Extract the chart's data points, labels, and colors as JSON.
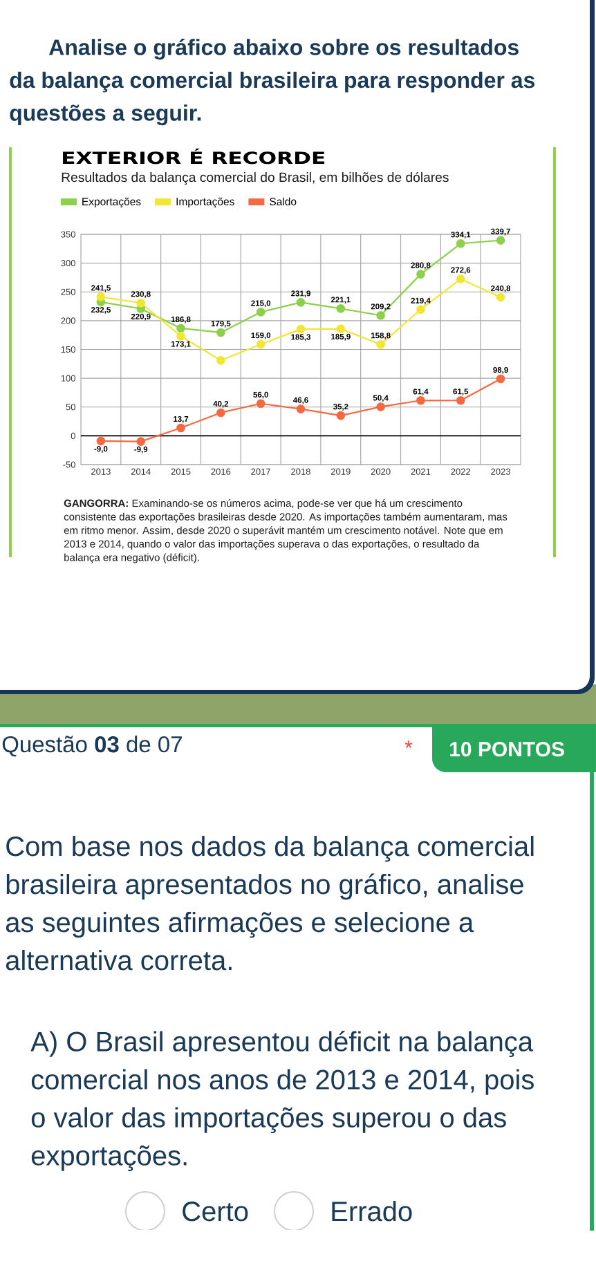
{
  "chart_data": {
    "type": "line",
    "title": "EXTERIOR É RECORDE",
    "subtitle": "Resultados da balança comercial do Brasil, em bilhões de dólares",
    "categories": [
      "2013",
      "2014",
      "2015",
      "2016",
      "2017",
      "2018",
      "2019",
      "2020",
      "2021",
      "2022",
      "2023"
    ],
    "series": [
      {
        "name": "Exportações",
        "color": "#8dd04b",
        "values": [
          232.5,
          220.9,
          186.8,
          179.5,
          215.0,
          231.9,
          221.1,
          209.2,
          280.8,
          334.1,
          339.7
        ],
        "value_labels": [
          "232,5",
          "220,9",
          "186,8",
          "179,5",
          "215,0",
          "231,9",
          "221,1",
          "209,2",
          "280,8",
          "334,1",
          "339,7"
        ]
      },
      {
        "name": "Importações",
        "color": "#f2e634",
        "values": [
          241.5,
          230.8,
          173.1,
          131,
          159.0,
          185.3,
          185.9,
          158.8,
          219.4,
          272.6,
          240.8
        ],
        "value_labels": [
          "241,5",
          "230,8",
          "173,1",
          null,
          "159,0",
          "185,3",
          "185,9",
          "158,8",
          "219,4",
          "272,6",
          "240,8"
        ]
      },
      {
        "name": "Saldo",
        "color": "#f4693f",
        "values": [
          -9.0,
          -9.9,
          13.7,
          40.2,
          56.0,
          46.6,
          35.2,
          50.4,
          61.4,
          61.5,
          98.9
        ],
        "value_labels": [
          "-9,0",
          "-9,9",
          "13,7",
          "40,2",
          "56,0",
          "46,6",
          "35,2",
          "50,4",
          "61,4",
          "61,5",
          "98,9"
        ]
      }
    ],
    "ylim": [
      -50,
      350
    ],
    "yticks": [
      -50,
      0,
      50,
      100,
      150,
      200,
      250,
      300,
      350
    ],
    "grid": true,
    "legend": "top",
    "marker": "circle",
    "line_style": "solid",
    "ref_lines": [
      {
        "axis": "y",
        "value": 0,
        "color": "#000000"
      }
    ],
    "annotations": [
      "Analise o gráfico abaixo sobre os resultados da balança comercial brasileira para responder as questões a seguir.",
      "**GANGORRA:** Examinando-se os números acima, pode-se ver que há um crescimento consistente das exportações brasileiras desde 2020. As importações também aumentaram, mas em ritmo menor. Assim, desde 2020 o superávit mantém um crescimento notável. Note que em 2013 e 2014, quando o valor das importações superava o das exportações, o resultado da balança era negativo (déficit).",
      "Questão **03** de 07",
      "*",
      "10 PONTOS",
      "Com base nos dados da balança comercial brasileira apresentados no gráfico, analise as seguintes afirmações e selecione a alternativa correta.",
      "A) O Brasil apresentou déficit na balança comercial nos anos de 2013 e 2014, pois o valor das importações superou o das exportações.",
      "Certo",
      "Errado"
    ]
  }
}
